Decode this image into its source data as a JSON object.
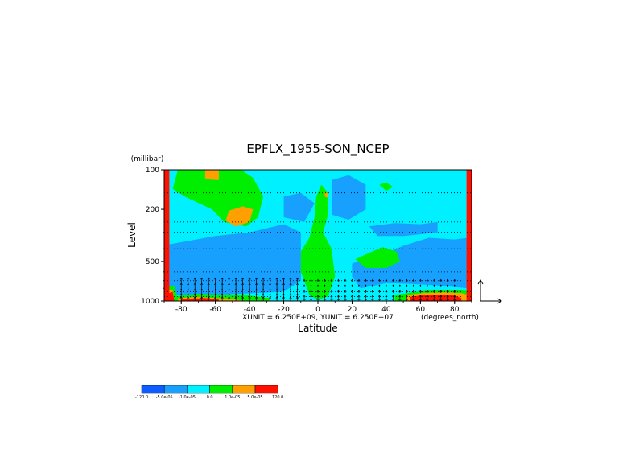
{
  "chart_data": {
    "type": "heatmap",
    "title": "EPFLX_1955-SON_NCEP",
    "xlabel": "Latitude",
    "ylabel": "Level",
    "y_units": "(millibar)",
    "x_units": "(degrees_north)",
    "unit_note": "XUNIT = 6.250E+09, YUNIT = 6.250E+07",
    "xlim": [
      -90,
      90
    ],
    "ylim": [
      1000,
      100
    ],
    "y_scale": "log",
    "x_ticks": [
      {
        "value": -80,
        "label": "-80"
      },
      {
        "value": -60,
        "label": "-60"
      },
      {
        "value": -40,
        "label": "-40"
      },
      {
        "value": -20,
        "label": "-20"
      },
      {
        "value": 0,
        "label": "0"
      },
      {
        "value": 20,
        "label": "20"
      },
      {
        "value": 40,
        "label": "40"
      },
      {
        "value": 60,
        "label": "60"
      },
      {
        "value": 80,
        "label": "80"
      }
    ],
    "y_ticks": [
      {
        "value": 100,
        "label": "100"
      },
      {
        "value": 200,
        "label": "200"
      },
      {
        "value": 500,
        "label": "500"
      },
      {
        "value": 1000,
        "label": "1000"
      }
    ],
    "grid": "dotted pressure levels",
    "levels": [
      150,
      250,
      300,
      400,
      600,
      700,
      850,
      925
    ],
    "colorbar": {
      "labels": [
        "-120.0",
        "-5.0e-05",
        "-1.0e-05",
        "0.0",
        "1.0e-05",
        "5.0e-05",
        "120.0"
      ],
      "colors": [
        "#0d5cff",
        "#18a0ff",
        "#00f0ff",
        "#00ee00",
        "#ffa000",
        "#ff1000"
      ]
    },
    "regions": [
      {
        "class": 2,
        "pts": [
          [
            -90,
            100
          ],
          [
            90,
            100
          ],
          [
            90,
            1000
          ],
          [
            -90,
            1000
          ]
        ]
      },
      {
        "class": 1,
        "pts": [
          [
            -87,
            370
          ],
          [
            -60,
            320
          ],
          [
            -40,
            300
          ],
          [
            -20,
            260
          ],
          [
            -10,
            300
          ],
          [
            -10,
            700
          ],
          [
            -20,
            850
          ],
          [
            -60,
            900
          ],
          [
            -87,
            900
          ]
        ]
      },
      {
        "class": 1,
        "pts": [
          [
            -20,
            160
          ],
          [
            -10,
            150
          ],
          [
            -2,
            180
          ],
          [
            -8,
            250
          ],
          [
            -20,
            230
          ]
        ]
      },
      {
        "class": 1,
        "pts": [
          [
            8,
            120
          ],
          [
            18,
            110
          ],
          [
            28,
            130
          ],
          [
            28,
            200
          ],
          [
            18,
            240
          ],
          [
            8,
            220
          ]
        ]
      },
      {
        "class": 1,
        "pts": [
          [
            20,
            520
          ],
          [
            30,
            460
          ],
          [
            42,
            420
          ],
          [
            50,
            380
          ],
          [
            65,
            330
          ],
          [
            80,
            340
          ],
          [
            88,
            330
          ],
          [
            88,
            800
          ],
          [
            70,
            760
          ],
          [
            55,
            740
          ],
          [
            40,
            730
          ],
          [
            25,
            800
          ],
          [
            20,
            650
          ]
        ]
      },
      {
        "class": 1,
        "pts": [
          [
            30,
            270
          ],
          [
            45,
            255
          ],
          [
            60,
            260
          ],
          [
            70,
            250
          ],
          [
            70,
            300
          ],
          [
            50,
            320
          ],
          [
            35,
            320
          ]
        ]
      },
      {
        "class": 3,
        "pts": [
          [
            -82,
            100
          ],
          [
            -45,
            100
          ],
          [
            -38,
            115
          ],
          [
            -32,
            160
          ],
          [
            -35,
            230
          ],
          [
            -42,
            270
          ],
          [
            -55,
            250
          ],
          [
            -62,
            200
          ],
          [
            -78,
            160
          ],
          [
            -85,
            140
          ]
        ]
      },
      {
        "class": 3,
        "pts": [
          [
            2,
            130
          ],
          [
            6,
            150
          ],
          [
            6,
            220
          ],
          [
            3,
            300
          ],
          [
            8,
            400
          ],
          [
            10,
            650
          ],
          [
            6,
            920
          ],
          [
            0,
            980
          ],
          [
            -5,
            900
          ],
          [
            -10,
            600
          ],
          [
            -10,
            420
          ],
          [
            -5,
            330
          ],
          [
            -2,
            230
          ],
          [
            -1,
            160
          ]
        ]
      },
      {
        "class": 3,
        "pts": [
          [
            22,
            480
          ],
          [
            30,
            430
          ],
          [
            38,
            390
          ],
          [
            46,
            420
          ],
          [
            48,
            500
          ],
          [
            40,
            560
          ],
          [
            28,
            560
          ]
        ]
      },
      {
        "class": 3,
        "pts": [
          [
            36,
            130
          ],
          [
            40,
            125
          ],
          [
            44,
            135
          ],
          [
            40,
            145
          ]
        ]
      },
      {
        "class": 3,
        "pts": [
          [
            -90,
            800
          ],
          [
            -84,
            760
          ],
          [
            -82,
            1000
          ],
          [
            -90,
            1000
          ]
        ]
      },
      {
        "class": 3,
        "pts": [
          [
            -84,
            920
          ],
          [
            -70,
            880
          ],
          [
            -55,
            900
          ],
          [
            -40,
            910
          ],
          [
            -28,
            950
          ],
          [
            -28,
            1000
          ],
          [
            -84,
            1000
          ]
        ]
      },
      {
        "class": 3,
        "pts": [
          [
            45,
            900
          ],
          [
            55,
            860
          ],
          [
            68,
            820
          ],
          [
            80,
            820
          ],
          [
            88,
            840
          ],
          [
            88,
            1000
          ],
          [
            45,
            1000
          ]
        ]
      },
      {
        "class": 4,
        "pts": [
          [
            -66,
            100
          ],
          [
            -58,
            100
          ],
          [
            -58,
            120
          ],
          [
            -66,
            118
          ]
        ]
      },
      {
        "class": 4,
        "pts": [
          [
            -52,
            205
          ],
          [
            -44,
            190
          ],
          [
            -38,
            200
          ],
          [
            -40,
            250
          ],
          [
            -48,
            270
          ],
          [
            -54,
            245
          ]
        ]
      },
      {
        "class": 4,
        "pts": [
          [
            4,
            148
          ],
          [
            6,
            152
          ],
          [
            6,
            164
          ],
          [
            4,
            160
          ]
        ]
      },
      {
        "class": 4,
        "pts": [
          [
            -90,
            840
          ],
          [
            -85,
            820
          ],
          [
            -84,
            1000
          ],
          [
            -90,
            1000
          ]
        ]
      },
      {
        "class": 4,
        "pts": [
          [
            -82,
            950
          ],
          [
            -70,
            930
          ],
          [
            -60,
            950
          ],
          [
            -50,
            960
          ],
          [
            -45,
            990
          ],
          [
            -45,
            1000
          ],
          [
            -82,
            1000
          ]
        ]
      },
      {
        "class": 4,
        "pts": [
          [
            52,
            900
          ],
          [
            62,
            870
          ],
          [
            74,
            860
          ],
          [
            84,
            870
          ],
          [
            88,
            900
          ],
          [
            88,
            1000
          ],
          [
            52,
            1000
          ]
        ]
      },
      {
        "class": 5,
        "pts": [
          [
            -90,
            100
          ],
          [
            -87,
            100
          ],
          [
            -87,
            1000
          ],
          [
            -90,
            1000
          ]
        ]
      },
      {
        "class": 5,
        "pts": [
          [
            87,
            100
          ],
          [
            90,
            100
          ],
          [
            90,
            1000
          ],
          [
            87,
            1000
          ]
        ]
      },
      {
        "class": 5,
        "pts": [
          [
            -88,
            880
          ],
          [
            -85,
            850
          ],
          [
            -84,
            1000
          ],
          [
            -88,
            1000
          ]
        ]
      },
      {
        "class": 5,
        "pts": [
          [
            -80,
            965
          ],
          [
            -66,
            950
          ],
          [
            -58,
            975
          ],
          [
            -58,
            1000
          ],
          [
            -80,
            1000
          ]
        ]
      },
      {
        "class": 5,
        "pts": [
          [
            54,
            930
          ],
          [
            62,
            900
          ],
          [
            72,
            895
          ],
          [
            80,
            910
          ],
          [
            84,
            950
          ],
          [
            84,
            1000
          ],
          [
            54,
            1000
          ]
        ]
      }
    ],
    "vectors": {
      "lat_start": -80,
      "lat_end": 80,
      "lat_step": 4,
      "levels": [
        700,
        770,
        850,
        925,
        975
      ]
    },
    "reference_arrow": true
  }
}
